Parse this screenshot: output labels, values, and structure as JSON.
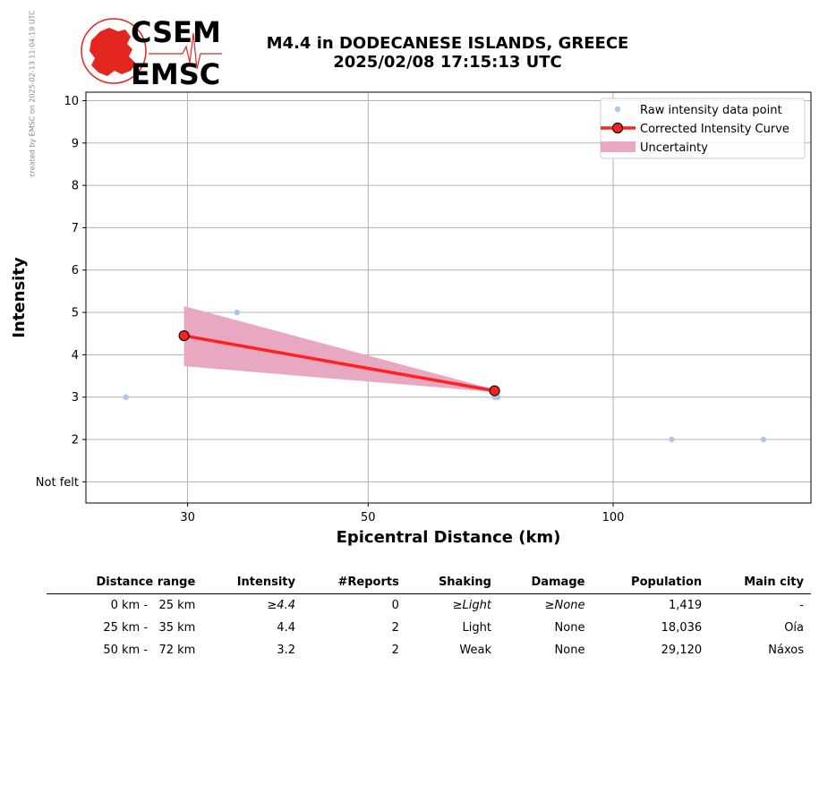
{
  "credit": "created by EMSC on 2025-02-13 11:04:19 UTC",
  "logo": {
    "text_top": "CSEM",
    "text_bottom": "EMSC",
    "color": "#e3261f"
  },
  "title_line1": "M4.4 in DODECANESE ISLANDS, GREECE",
  "title_line2": "2025/02/08 17:15:13 UTC",
  "chart_data": {
    "type": "scatter",
    "xlabel": "Epicentral Distance (km)",
    "ylabel": "Intensity",
    "x_scale": "log",
    "xlim": [
      22.5,
      175
    ],
    "ylim": [
      0.5,
      10.2
    ],
    "x_ticks": [
      30,
      50,
      100
    ],
    "y_ticks": [
      {
        "v": 1,
        "label": "Not felt"
      },
      {
        "v": 2,
        "label": "2"
      },
      {
        "v": 3,
        "label": "3"
      },
      {
        "v": 4,
        "label": "4"
      },
      {
        "v": 5,
        "label": "5"
      },
      {
        "v": 6,
        "label": "6"
      },
      {
        "v": 7,
        "label": "7"
      },
      {
        "v": 8,
        "label": "8"
      },
      {
        "v": 9,
        "label": "9"
      },
      {
        "v": 10,
        "label": "10"
      }
    ],
    "grid": true,
    "legend_position": "top-right",
    "series": [
      {
        "name": "Raw intensity data point",
        "type": "scatter",
        "color": "#b0c4ea",
        "points": [
          [
            25.2,
            3
          ],
          [
            34.5,
            5
          ],
          [
            71.5,
            3
          ],
          [
            72.2,
            3
          ],
          [
            118,
            2
          ],
          [
            153,
            2
          ]
        ]
      },
      {
        "name": "Corrected Intensity Curve",
        "type": "line",
        "color": "#ff2020",
        "points": [
          [
            29.7,
            4.45
          ],
          [
            71.5,
            3.15
          ]
        ]
      },
      {
        "name": "Uncertainty",
        "type": "area",
        "color": "#e8a8c2",
        "upper": [
          [
            29.7,
            5.15
          ],
          [
            71.5,
            3.18
          ]
        ],
        "lower": [
          [
            29.7,
            3.73
          ],
          [
            71.5,
            3.12
          ]
        ]
      }
    ]
  },
  "table": {
    "headers": [
      "Distance range",
      "Intensity",
      "#Reports",
      "Shaking",
      "Damage",
      "Population",
      "Main city"
    ],
    "rows": [
      [
        "0 km -   25 km",
        "≥4.4",
        "0",
        "≥Light",
        "≥None",
        "1,419",
        "-"
      ],
      [
        "25 km -   35 km",
        "4.4",
        "2",
        "Light",
        "None",
        "18,036",
        "Oía"
      ],
      [
        "50 km -   72 km",
        "3.2",
        "2",
        "Weak",
        "None",
        "29,120",
        "Náxos"
      ]
    ]
  }
}
